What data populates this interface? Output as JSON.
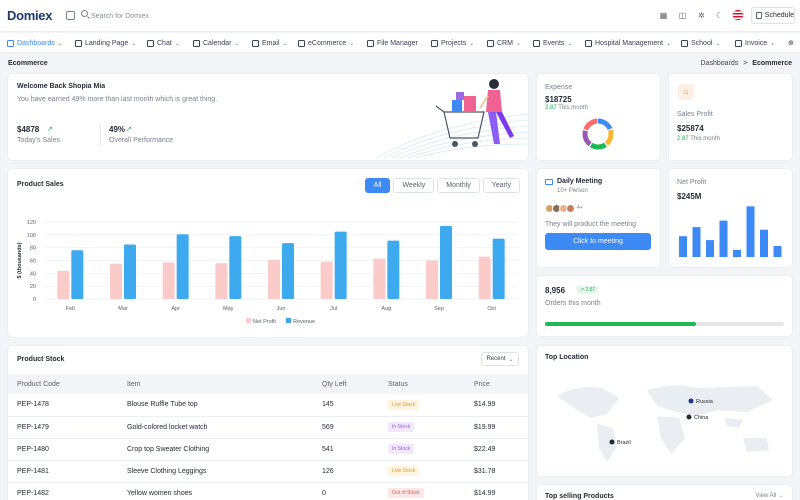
{
  "app": {
    "logo_text": "Domiex",
    "search_placeholder": "Search for Domiex",
    "schedule_label": "Schedule"
  },
  "nav": {
    "items": [
      {
        "label": "Dashboards",
        "icon": "dashboard-icon",
        "active": true
      },
      {
        "label": "Landing Page",
        "icon": "cube-icon"
      },
      {
        "label": "Chat",
        "icon": "chat-icon"
      },
      {
        "label": "Calendar",
        "icon": "calendar-icon"
      },
      {
        "label": "Email",
        "icon": "mail-icon"
      },
      {
        "label": "eCommerce",
        "icon": "cart-icon"
      },
      {
        "label": "File Manager",
        "icon": "folder-icon"
      },
      {
        "label": "Projects",
        "icon": "monitor-icon"
      },
      {
        "label": "CRM",
        "icon": "crm-icon"
      },
      {
        "label": "Events",
        "icon": "events-icon"
      },
      {
        "label": "Hospital Management",
        "icon": "hospital-icon"
      },
      {
        "label": "School",
        "icon": "school-icon"
      },
      {
        "label": "Invoice",
        "icon": "invoice-icon"
      }
    ]
  },
  "page": {
    "title": "Ecommerce",
    "breadcrumb_parent": "Dashboards",
    "breadcrumb_sep": ">",
    "breadcrumb_current": "Ecommerce"
  },
  "welcome": {
    "title": "Welcome Back Shopia Mia",
    "subtitle": "You have earned 49% more than last month which is great thing.",
    "sales_value": "$4878",
    "sales_label": "Today's Sales",
    "perf_value": "49%",
    "perf_label": "Overall Performance"
  },
  "expense": {
    "title": "Expense",
    "value": "$18725",
    "change": "2.87",
    "period": "This month",
    "donut_colors": [
      "#3d8af7",
      "#f7b731",
      "#1db954",
      "#9b59b6",
      "#ff6b6b"
    ]
  },
  "sales_profit": {
    "title": "Sales Profit",
    "value": "$25874",
    "change": "2.87",
    "period": "This month"
  },
  "meeting": {
    "title": "Daily Meeting",
    "subtitle": "10+ Person",
    "avatar_more": "4+",
    "text": "They will product the meeting",
    "button": "Click to meeting"
  },
  "net_profit": {
    "title": "Net Profit",
    "value": "$245M",
    "bars": [
      32,
      46,
      26,
      56,
      11,
      78,
      42,
      17
    ]
  },
  "orders": {
    "value": "8,956",
    "change": "2.87",
    "label": "Orders this month",
    "progress": 0.63
  },
  "product_sales": {
    "title": "Product Sales",
    "tabs": [
      "All",
      "Weekly",
      "Monthly",
      "Yearly"
    ]
  },
  "chart_data": {
    "type": "bar",
    "categories": [
      "Feb",
      "Mar",
      "Apr",
      "May",
      "Jun",
      "Jul",
      "Aug",
      "Sep",
      "Oct"
    ],
    "series": [
      {
        "name": "Net Profit",
        "color": "#fbcbc9",
        "values": [
          44,
          55,
          57,
          56,
          61,
          58,
          63,
          60,
          66
        ]
      },
      {
        "name": "Revenue",
        "color": "#3daaf0",
        "values": [
          76,
          85,
          101,
          98,
          87,
          105,
          91,
          114,
          94
        ]
      }
    ],
    "ylabel": "$ (thousands)",
    "yticks": [
      0,
      20,
      40,
      60,
      80,
      100,
      120
    ],
    "ylim": [
      0,
      120
    ],
    "grid": true,
    "legend": "bottom"
  },
  "product_stock": {
    "title": "Product Stock",
    "filter": "Recent",
    "columns": [
      "Product Code",
      "Item",
      "Qty Left",
      "Status",
      "Price"
    ],
    "rows": [
      {
        "code": "PEP-1478",
        "item": "Blouse Ruffle Tube top",
        "qty": "145",
        "status": "Low Stock",
        "price": "$14.99"
      },
      {
        "code": "PEP-1479",
        "item": "Gold-colored locket watch",
        "qty": "569",
        "status": "In Stock",
        "price": "$19.99"
      },
      {
        "code": "PEP-1480",
        "item": "Crop top Sweater Clothing",
        "qty": "541",
        "status": "In Stock",
        "price": "$22.49"
      },
      {
        "code": "PEP-1481",
        "item": "Sleeve Clothing Leggings",
        "qty": "126",
        "status": "Low Stock",
        "price": "$31.78"
      },
      {
        "code": "PEP-1482",
        "item": "Yellow women shoes",
        "qty": "0",
        "status": "Out of Stock",
        "price": "$14.99"
      }
    ],
    "status_styles": {
      "Low Stock": {
        "bg": "#fff4e0",
        "fg": "#e89a1c"
      },
      "In Stock": {
        "bg": "#f1e8fd",
        "fg": "#9b59e6"
      },
      "Out of Stock": {
        "bg": "#fde7e7",
        "fg": "#e85454"
      }
    }
  },
  "top_location": {
    "title": "Top Location",
    "markers": [
      "Russia",
      "China",
      "Brazil"
    ]
  },
  "top_selling": {
    "title": "Top selling Products",
    "link": "View All"
  }
}
